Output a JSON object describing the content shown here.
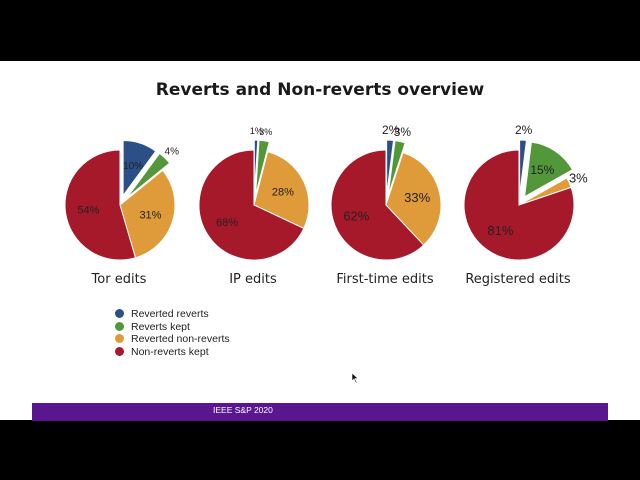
{
  "slide": {
    "title": "Reverts and Non-reverts overview",
    "footer": "IEEE S&P 2020"
  },
  "colors": {
    "reverted_reverts": "#2d4f87",
    "reverts_kept": "#52973a",
    "reverted_non_reverts": "#df9a39",
    "non_reverts_kept": "#a5192a",
    "footer_bar": "#5a1591"
  },
  "chart_data": [
    {
      "type": "pie",
      "title": "Tor edits",
      "labels": [
        "Reverted reverts",
        "Reverts kept",
        "Reverted non-reverts",
        "Non-reverts kept"
      ],
      "values": [
        10,
        4,
        31,
        54
      ],
      "value_labels": [
        "10%",
        "4%",
        "31%",
        "54%"
      ],
      "exploded": [
        true,
        true,
        false,
        false
      ]
    },
    {
      "type": "pie",
      "title": "IP edits",
      "labels": [
        "Reverted reverts",
        "Reverts kept",
        "Reverted non-reverts",
        "Non-reverts kept"
      ],
      "values": [
        1,
        3,
        28,
        68
      ],
      "value_labels": [
        "1%",
        "3%",
        "28%",
        "68%"
      ],
      "exploded": [
        true,
        true,
        false,
        false
      ]
    },
    {
      "type": "pie",
      "title": "First-time edits",
      "labels": [
        "Reverted reverts",
        "Reverts kept",
        "Reverted non-reverts",
        "Non-reverts kept"
      ],
      "values": [
        2,
        3,
        33,
        62
      ],
      "value_labels": [
        "2%",
        "3%",
        "33%",
        "62%"
      ],
      "exploded": [
        true,
        true,
        false,
        false
      ]
    },
    {
      "type": "pie",
      "title": "Registered edits",
      "labels": [
        "Reverted reverts",
        "Reverts kept",
        "Reverted non-reverts",
        "Non-reverts kept"
      ],
      "values": [
        2,
        15,
        3,
        81
      ],
      "value_labels": [
        "2%",
        "15%",
        "3%",
        "81%"
      ],
      "exploded": [
        true,
        true,
        false,
        false
      ]
    }
  ],
  "legend": {
    "items": [
      "Reverted reverts",
      "Reverts kept",
      "Reverted non-reverts",
      "Non-reverts kept"
    ]
  }
}
